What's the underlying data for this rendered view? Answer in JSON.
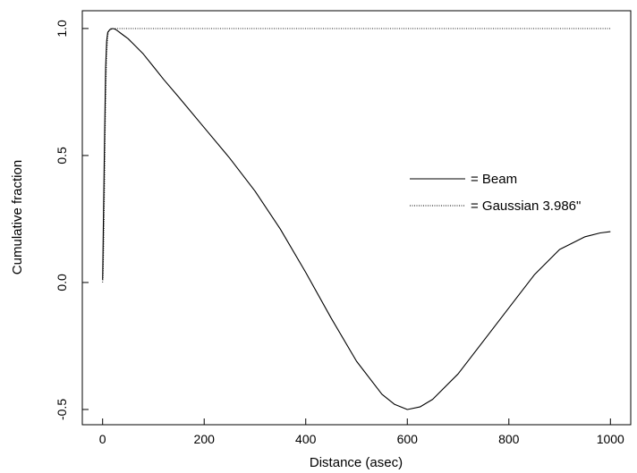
{
  "chart_data": {
    "type": "line",
    "title": "",
    "xlabel": "Distance (asec)",
    "ylabel": "Cumulative fraction",
    "xlim": [
      -40,
      1040
    ],
    "ylim": [
      -0.56,
      1.07
    ],
    "xticks": [
      0,
      200,
      400,
      600,
      800,
      1000
    ],
    "xtick_labels": [
      "0",
      "200",
      "400",
      "600",
      "800",
      "1000"
    ],
    "yticks": [
      -0.5,
      0.0,
      0.5,
      1.0
    ],
    "ytick_labels": [
      "-0.5",
      "0.0",
      "0.5",
      "1.0"
    ],
    "grid": false,
    "legend_placement": "right",
    "series": [
      {
        "name": "= Beam",
        "style": "solid",
        "color": "#000000",
        "x": [
          0,
          2,
          4,
          6,
          8,
          10,
          14,
          20,
          25,
          30,
          40,
          50,
          60,
          80,
          100,
          120,
          150,
          200,
          250,
          300,
          350,
          400,
          450,
          500,
          550,
          575,
          600,
          625,
          650,
          700,
          750,
          800,
          850,
          900,
          950,
          980,
          1000
        ],
        "y": [
          0.01,
          0.3,
          0.6,
          0.85,
          0.95,
          0.985,
          0.995,
          1.0,
          0.997,
          0.99,
          0.975,
          0.96,
          0.94,
          0.9,
          0.85,
          0.8,
          0.73,
          0.61,
          0.49,
          0.36,
          0.21,
          0.04,
          -0.14,
          -0.31,
          -0.44,
          -0.48,
          -0.5,
          -0.49,
          -0.46,
          -0.36,
          -0.23,
          -0.1,
          0.03,
          0.13,
          0.18,
          0.195,
          0.2
        ]
      },
      {
        "name": "= Gaussian 3.986\"",
        "style": "dotted",
        "color": "#000000",
        "x": [
          0,
          1,
          2,
          3,
          4,
          5,
          6,
          7,
          8,
          10,
          12,
          15,
          20,
          1000
        ],
        "y": [
          0.0,
          0.03,
          0.12,
          0.25,
          0.41,
          0.57,
          0.71,
          0.82,
          0.9,
          0.97,
          0.99,
          1.0,
          1.0,
          1.0
        ]
      }
    ]
  }
}
